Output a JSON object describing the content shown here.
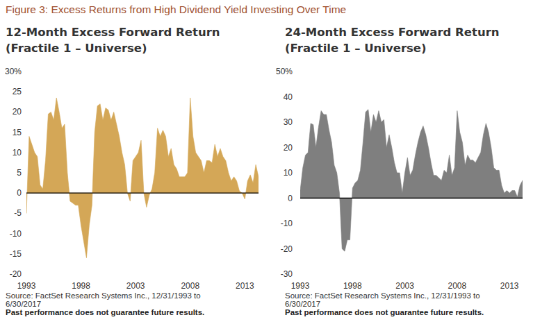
{
  "title": "Figure 3: Excess Returns from High Dividend Yield Investing Over Time",
  "chart_data": [
    {
      "type": "area",
      "title": "12-Month Excess Forward Return",
      "subtitle": "(Fractile 1 – Universe)",
      "annotations": [
        "Source: FactSet Research Systems Inc., 12/31/1993 to 6/30/2017",
        "Past performance does not guarantee future results."
      ],
      "color": "#d4a757",
      "grid": false,
      "x": [
        1993,
        1993.25,
        1993.5,
        1993.75,
        1994,
        1994.25,
        1994.5,
        1994.75,
        1995,
        1995.25,
        1995.5,
        1995.75,
        1996,
        1996.25,
        1996.5,
        1996.75,
        1997,
        1997.25,
        1997.5,
        1997.75,
        1998,
        1998.25,
        1998.5,
        1998.75,
        1999,
        1999.25,
        1999.5,
        1999.75,
        2000,
        2000.25,
        2000.5,
        2000.75,
        2001,
        2001.25,
        2001.5,
        2001.75,
        2002,
        2002.25,
        2002.5,
        2002.75,
        2003,
        2003.25,
        2003.5,
        2003.75,
        2004,
        2004.25,
        2004.5,
        2004.75,
        2005,
        2005.25,
        2005.5,
        2005.75,
        2006,
        2006.25,
        2006.5,
        2006.75,
        2007,
        2007.25,
        2007.5,
        2007.75,
        2008,
        2008.25,
        2008.5,
        2008.75,
        2009,
        2009.25,
        2009.5,
        2009.75,
        2010,
        2010.25,
        2010.5,
        2010.75,
        2011,
        2011.25,
        2011.5,
        2011.75,
        2012,
        2012.25,
        2012.5,
        2012.75,
        2013,
        2013.25,
        2013.5,
        2013.75,
        2014,
        2014.25
      ],
      "values": [
        -5,
        14,
        12,
        10,
        9,
        2,
        1,
        8,
        19.5,
        20,
        18,
        23.5,
        20,
        16,
        17,
        5,
        -2,
        -2.5,
        -3,
        -3,
        -8,
        -12,
        -16,
        -8,
        -3,
        15,
        21.5,
        22,
        18,
        21,
        20.5,
        18,
        20,
        17,
        14,
        10,
        7,
        0,
        -2,
        8,
        9,
        10,
        13,
        0,
        -3.5,
        -0.5,
        1,
        5,
        16,
        14,
        15.5,
        14,
        9,
        11,
        7,
        6,
        4,
        4,
        4,
        5,
        23.5,
        14,
        10,
        9,
        8,
        5,
        8,
        8,
        7.5,
        12,
        9,
        11,
        9,
        8,
        5,
        3,
        4,
        3,
        0.5,
        0,
        -1.5,
        3,
        4.5,
        2.5,
        7,
        4
      ],
      "xlim": [
        1993,
        2014.25
      ],
      "xticks": [
        1993,
        1998,
        2003,
        2008,
        2013
      ],
      "ylim": [
        -20,
        30
      ],
      "yticks": [
        -20,
        -15,
        -10,
        -5,
        0,
        5,
        10,
        15,
        20,
        25,
        {
          "value": 30,
          "label": "30%"
        }
      ]
    },
    {
      "type": "area",
      "title": "24-Month Excess Forward Return",
      "subtitle": "(Fractile 1 – Universe)",
      "annotations": [
        "Source: FactSet Research Systems Inc., 12/31/1993 to 6/30/2017",
        "Past performance does not guarantee future results."
      ],
      "color": "#7f7f7f",
      "grid": false,
      "x": [
        1993,
        1993.25,
        1993.5,
        1993.75,
        1994,
        1994.25,
        1994.5,
        1994.75,
        1995,
        1995.25,
        1995.5,
        1995.75,
        1996,
        1996.25,
        1996.5,
        1996.75,
        1997,
        1997.25,
        1997.5,
        1997.75,
        1998,
        1998.25,
        1998.5,
        1998.75,
        1999,
        1999.25,
        1999.5,
        1999.75,
        2000,
        2000.25,
        2000.5,
        2000.75,
        2001,
        2001.25,
        2001.5,
        2001.75,
        2002,
        2002.25,
        2002.5,
        2002.75,
        2003,
        2003.25,
        2003.5,
        2003.75,
        2004,
        2004.25,
        2004.5,
        2004.75,
        2005,
        2005.25,
        2005.5,
        2005.75,
        2006,
        2006.25,
        2006.5,
        2006.75,
        2007,
        2007.25,
        2007.5,
        2007.75,
        2008,
        2008.25,
        2008.5,
        2008.75,
        2009,
        2009.25,
        2009.5,
        2009.75,
        2010,
        2010.25,
        2010.5,
        2010.75,
        2011,
        2011.25,
        2011.5,
        2011.75,
        2012,
        2012.25,
        2012.5,
        2012.75,
        2013,
        2013.25,
        2013.5,
        2013.75,
        2014,
        2014.25
      ],
      "values": [
        3,
        12,
        17,
        18,
        29.5,
        29,
        20,
        28,
        34.5,
        33,
        33,
        27,
        22,
        13,
        10,
        2,
        -20,
        -21,
        -16.5,
        -16.5,
        4,
        6,
        7,
        11,
        22,
        34,
        35,
        26,
        33,
        30,
        34.5,
        30,
        31,
        20,
        25,
        20,
        14,
        10,
        10,
        2,
        10,
        16,
        9,
        11,
        17,
        22,
        26,
        28.5,
        25,
        20,
        14,
        9,
        9,
        8,
        7,
        11,
        10,
        17,
        9,
        12,
        34.5,
        26,
        22,
        13,
        17,
        15,
        15,
        14,
        16,
        18,
        25,
        29.5,
        26,
        20,
        12,
        11,
        11,
        5,
        2,
        3,
        2,
        3,
        3,
        0.5,
        5,
        7
      ],
      "xlim": [
        1993,
        2014.25
      ],
      "xticks": [
        1993,
        1998,
        2003,
        2008,
        2013
      ],
      "ylim": [
        -30,
        50
      ],
      "yticks": [
        -30,
        -20,
        -10,
        0,
        10,
        20,
        30,
        40,
        {
          "value": 50,
          "label": "50%"
        }
      ]
    }
  ]
}
